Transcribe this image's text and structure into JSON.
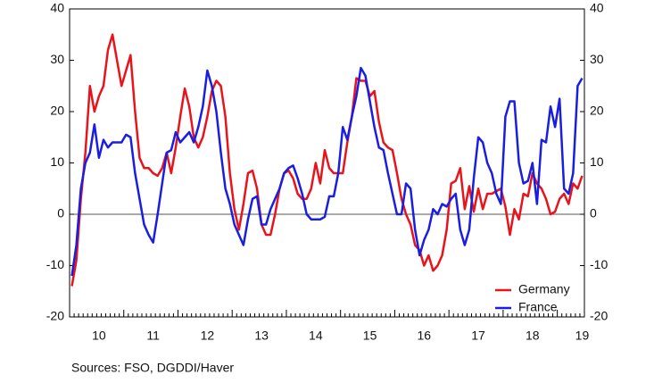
{
  "chart_data": {
    "type": "line",
    "categories": [
      null,
      null,
      null,
      null,
      null,
      null,
      "10",
      null,
      null,
      null,
      null,
      null,
      null,
      null,
      null,
      null,
      null,
      null,
      "11",
      null,
      null,
      null,
      null,
      null,
      null,
      null,
      null,
      null,
      null,
      null,
      "12",
      null,
      null,
      null,
      null,
      null,
      null,
      null,
      null,
      null,
      null,
      null,
      "13",
      null,
      null,
      null,
      null,
      null,
      null,
      null,
      null,
      null,
      null,
      null,
      "14",
      null,
      null,
      null,
      null,
      null,
      null,
      null,
      null,
      null,
      null,
      null,
      "15",
      null,
      null,
      null,
      null,
      null,
      null,
      null,
      null,
      null,
      null,
      null,
      "16",
      null,
      null,
      null,
      null,
      null,
      null,
      null,
      null,
      null,
      null,
      null,
      "17",
      null,
      null,
      null,
      null,
      null,
      null,
      null,
      null,
      null,
      null,
      null,
      "18",
      null,
      null,
      null,
      null,
      null,
      null,
      null,
      null,
      null,
      null,
      "19"
    ],
    "series": [
      {
        "name": "Germany",
        "color": "#e8141c",
        "values": [
          -14,
          -9,
          3,
          12,
          25,
          20,
          23,
          25,
          32,
          35,
          30,
          25,
          28,
          31,
          20,
          11,
          9,
          9,
          8,
          7.5,
          9,
          12,
          8,
          13,
          19,
          24.5,
          21,
          15,
          13,
          15,
          19,
          24,
          26,
          25,
          19,
          8,
          1,
          -3,
          2,
          8,
          8.5,
          5,
          -2,
          -4,
          -4,
          0,
          5,
          8,
          8.5,
          7,
          4,
          3,
          3,
          5,
          10,
          6,
          12.5,
          9,
          8,
          8,
          8,
          14,
          19,
          26.5,
          26,
          26,
          23,
          24,
          18,
          14,
          13,
          12.5,
          8,
          3,
          0,
          -2,
          -6,
          -7,
          -10,
          -8,
          -11,
          -10,
          -8,
          -3,
          6,
          6.5,
          9,
          1,
          5.5,
          0.5,
          5,
          1,
          4,
          4,
          4.5,
          5,
          1.5,
          -4,
          1,
          -1,
          4,
          3.5,
          8,
          6,
          5,
          3,
          0,
          0.5,
          3,
          4,
          2,
          6,
          5,
          7.5
        ]
      },
      {
        "name": "France",
        "color": "#1a1ee0",
        "values": [
          -12,
          -6,
          5,
          10,
          12,
          17.5,
          11,
          14.5,
          13,
          14,
          14,
          14,
          15.5,
          15,
          8,
          3,
          -2,
          -4,
          -5.5,
          0,
          6,
          12,
          12.5,
          16,
          14,
          15,
          16,
          14,
          17,
          21,
          28,
          25,
          20,
          12,
          5,
          2,
          -2,
          -4,
          -6,
          -1,
          3,
          3.5,
          -2,
          -2,
          1,
          3,
          5,
          8,
          9,
          9.5,
          7,
          4,
          0,
          -1,
          -1,
          -1,
          -0.5,
          3.5,
          3.5,
          8,
          17,
          14.5,
          19,
          23,
          28.5,
          27,
          22,
          17,
          13,
          12.5,
          8,
          4,
          0,
          0,
          6,
          5,
          -3,
          -8,
          -5,
          -3,
          1,
          0,
          2,
          1.5,
          3,
          4,
          -3,
          -6,
          -3,
          7,
          15,
          14,
          10,
          8,
          4,
          2,
          19,
          22,
          22,
          10,
          6,
          6.5,
          10,
          2,
          14.5,
          14,
          21,
          17,
          22.5,
          5,
          4,
          8,
          25,
          26.5
        ]
      }
    ],
    "ylim": [
      -20,
      40
    ],
    "yticks": [
      -20,
      -10,
      0,
      10,
      20,
      30,
      40
    ],
    "y2lim": [
      -20,
      40
    ],
    "y2ticks": [
      -20,
      -10,
      0,
      10,
      20,
      30,
      40
    ],
    "legend": "lower right",
    "source": "Sources:  FSO, DGDDI/Haver"
  }
}
